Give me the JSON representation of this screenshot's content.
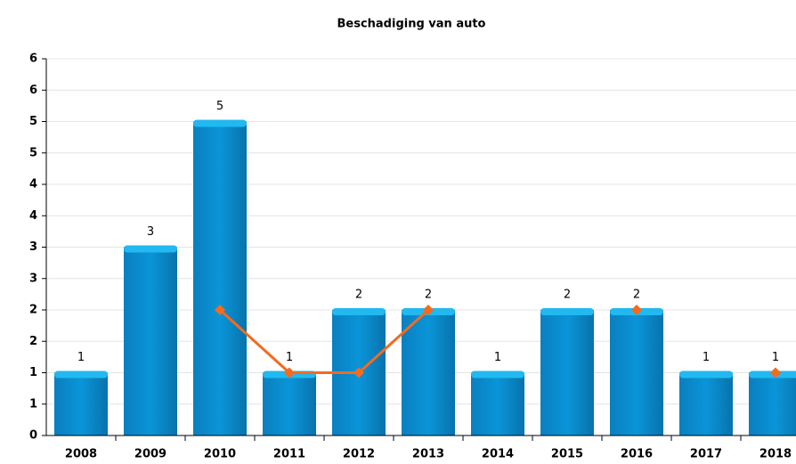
{
  "chart_data": {
    "type": "bar",
    "title": "Beschadiging van auto",
    "categories": [
      "2008",
      "2009",
      "2010",
      "2011",
      "2012",
      "2013",
      "2014",
      "2015",
      "2016",
      "2017",
      "2018"
    ],
    "series": [
      {
        "type": "bar",
        "color": "#0a8fd0",
        "values": [
          1,
          3,
          5,
          1,
          2,
          2,
          1,
          2,
          2,
          1,
          1
        ]
      },
      {
        "type": "line",
        "color": "#f26b1f",
        "values": [
          null,
          null,
          2,
          1,
          1,
          2,
          null,
          null,
          2,
          null,
          1
        ]
      }
    ],
    "ylim": [
      0,
      6
    ],
    "yticks": [
      0,
      {
        "value": 0.5,
        "label": "1"
      },
      1,
      {
        "value": 1.5,
        "label": "2"
      },
      2,
      {
        "value": 2.5,
        "label": "3"
      },
      3,
      {
        "value": 3.5,
        "label": "4"
      },
      4,
      {
        "value": 4.5,
        "label": "5"
      },
      5,
      {
        "value": 5.5,
        "label": "6"
      },
      6
    ],
    "grid": true
  }
}
